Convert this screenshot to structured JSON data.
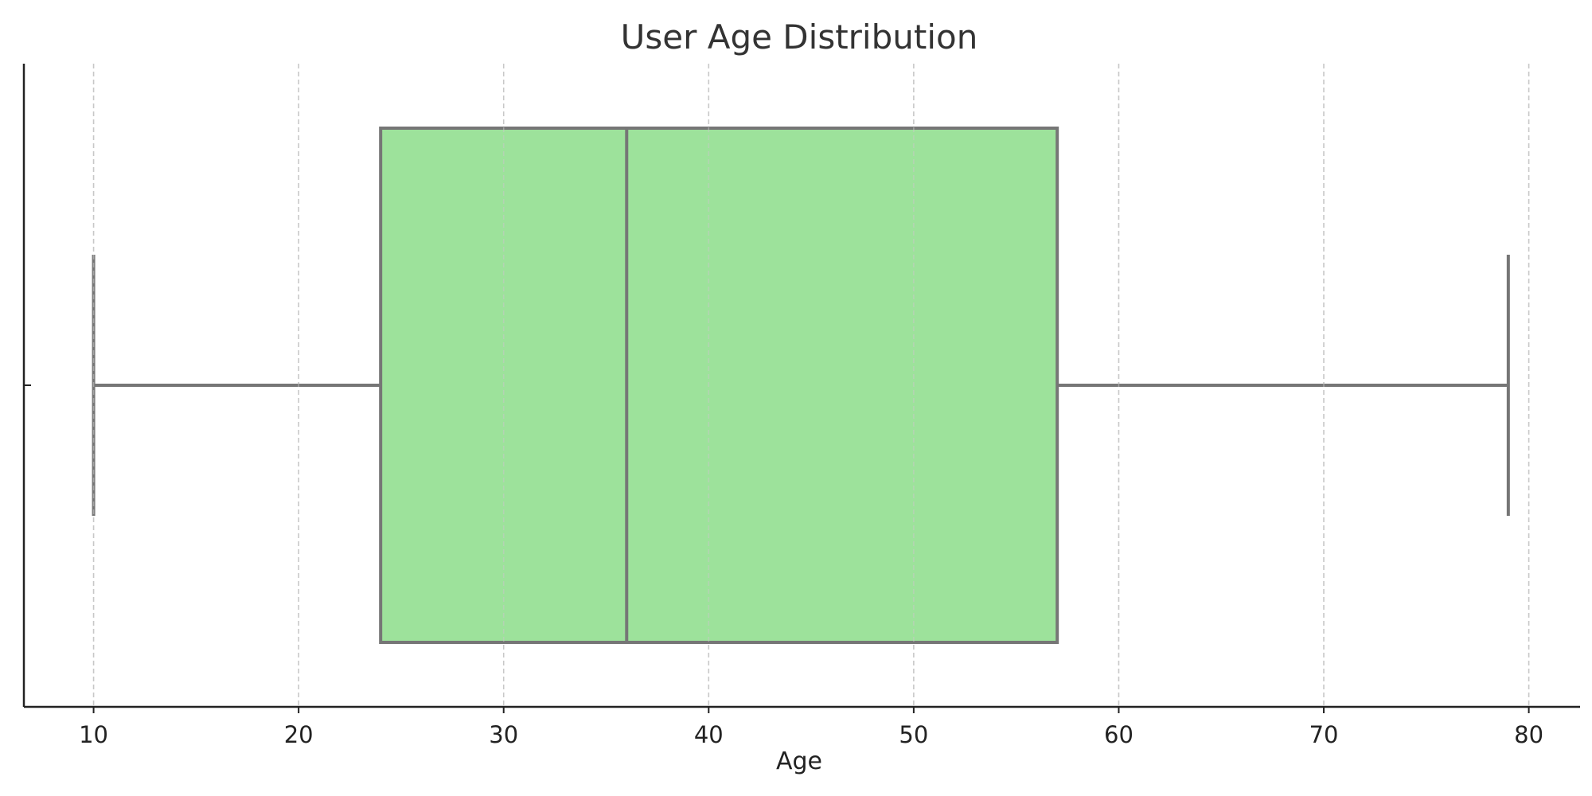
{
  "chart_data": {
    "type": "box",
    "orientation": "horizontal",
    "title": "User Age Distribution",
    "xlabel": "Age",
    "ylabel": "",
    "xlim": [
      6.6,
      82.5
    ],
    "xticks": [
      10,
      20,
      30,
      40,
      50,
      60,
      70,
      80
    ],
    "grid": "x-only, dashed",
    "series": [
      {
        "whisker_low": 10,
        "q1": 24,
        "median": 36,
        "q3": 57,
        "whisker_high": 79
      }
    ],
    "colors": {
      "box_fill": "#9de29b",
      "box_stroke": "#767676",
      "grid": "#c8c8c8",
      "axis": "#222222"
    }
  }
}
